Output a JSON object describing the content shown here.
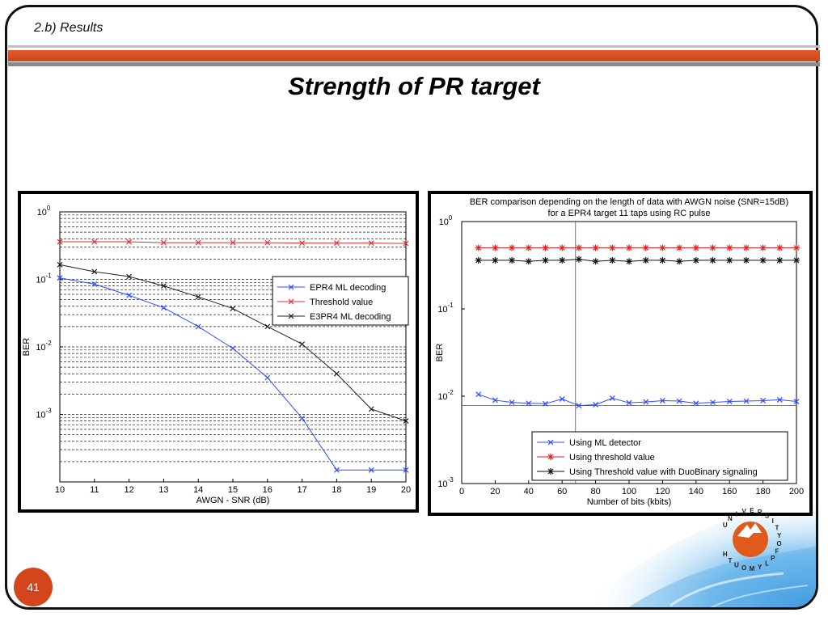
{
  "slide": {
    "section_title": "2.b) Results",
    "title": "Strength of  PR target",
    "page_number": "41",
    "logo_letters": [
      "U",
      "N",
      "I",
      "V",
      "E",
      "R",
      "S",
      "I",
      "T",
      "Y",
      "O",
      "F",
      "P",
      "L",
      "Y",
      "M",
      "O",
      "U",
      "T",
      "H"
    ]
  },
  "chart_data": [
    {
      "type": "line",
      "title": "",
      "xlabel": "AWGN - SNR (dB)",
      "ylabel": "BER",
      "y_scale": "log",
      "xlim": [
        10,
        20
      ],
      "ylim": [
        0.0001,
        1
      ],
      "x_ticks": [
        "10",
        "11",
        "12",
        "13",
        "14",
        "15",
        "16",
        "17",
        "18",
        "19",
        "20"
      ],
      "y_tick_mantissa": "10",
      "y_ticks": [
        {
          "value": 1,
          "exp": "0"
        },
        {
          "value": 0.1,
          "exp": "-1"
        },
        {
          "value": 0.01,
          "exp": "-2"
        },
        {
          "value": 0.001,
          "exp": "-3"
        }
      ],
      "grid": "horizontal-minor-dashed",
      "legend_position": "top-right",
      "x": [
        10,
        11,
        12,
        13,
        14,
        15,
        16,
        17,
        18,
        19,
        20
      ],
      "series": [
        {
          "name": "EPR4 ML decoding",
          "color": "#2b4bff",
          "marker": "x",
          "values": [
            0.105,
            0.085,
            0.058,
            0.038,
            0.02,
            0.0095,
            0.0035,
            0.00088,
            0.00015,
            0.00015,
            0.00015
          ]
        },
        {
          "name": "Threshold value",
          "color": "#e03030",
          "marker": "x",
          "values": [
            0.36,
            0.36,
            0.36,
            0.35,
            0.35,
            0.35,
            0.35,
            0.345,
            0.345,
            0.345,
            0.34
          ]
        },
        {
          "name": "E3PR4 ML decoding",
          "color": "#222222",
          "marker": "x",
          "values": [
            0.165,
            0.13,
            0.11,
            0.08,
            0.055,
            0.037,
            0.02,
            0.011,
            0.004,
            0.0012,
            0.0008
          ]
        }
      ]
    },
    {
      "type": "line",
      "title": "BER comparison depending on the length of data with AWGN noise (SNR=15dB)",
      "subtitle": "for a EPR4 target 11 taps using RC pulse",
      "xlabel": "Number of bits (kbits)",
      "ylabel": "BER",
      "y_scale": "log",
      "xlim": [
        0,
        200
      ],
      "ylim": [
        0.001,
        1
      ],
      "x_ticks": [
        "0",
        "20",
        "40",
        "60",
        "80",
        "100",
        "120",
        "140",
        "160",
        "180",
        "200"
      ],
      "y_tick_mantissa": "10",
      "y_ticks": [
        {
          "value": 1,
          "exp": "0"
        },
        {
          "value": 0.1,
          "exp": "-1"
        },
        {
          "value": 0.01,
          "exp": "-2"
        },
        {
          "value": 0.001,
          "exp": "-3"
        }
      ],
      "grid": "off",
      "legend_position": "bottom-right",
      "crosshair": {
        "x": 68,
        "y": 0.0078
      },
      "x": [
        10,
        20,
        30,
        40,
        50,
        60,
        70,
        80,
        90,
        100,
        110,
        120,
        130,
        140,
        150,
        160,
        170,
        180,
        190,
        200
      ],
      "series": [
        {
          "name": "Using ML detector",
          "color": "#2b4bff",
          "marker": "x",
          "values": [
            0.0105,
            0.009,
            0.0085,
            0.0083,
            0.0082,
            0.0093,
            0.0078,
            0.008,
            0.0095,
            0.0084,
            0.0086,
            0.0089,
            0.0088,
            0.0083,
            0.0085,
            0.0087,
            0.0088,
            0.0089,
            0.0091,
            0.0087
          ]
        },
        {
          "name": "Using threshold value",
          "color": "#e02020",
          "marker": "*",
          "values": [
            0.5,
            0.5,
            0.5,
            0.5,
            0.5,
            0.5,
            0.5,
            0.5,
            0.5,
            0.5,
            0.5,
            0.5,
            0.5,
            0.5,
            0.5,
            0.5,
            0.5,
            0.5,
            0.5,
            0.5
          ]
        },
        {
          "name": "Using Threshold value with DuoBinary signaling",
          "color": "#111111",
          "marker": "*",
          "values": [
            0.36,
            0.36,
            0.36,
            0.35,
            0.36,
            0.36,
            0.37,
            0.35,
            0.36,
            0.35,
            0.36,
            0.36,
            0.35,
            0.36,
            0.36,
            0.36,
            0.36,
            0.36,
            0.36,
            0.36
          ]
        }
      ]
    }
  ]
}
